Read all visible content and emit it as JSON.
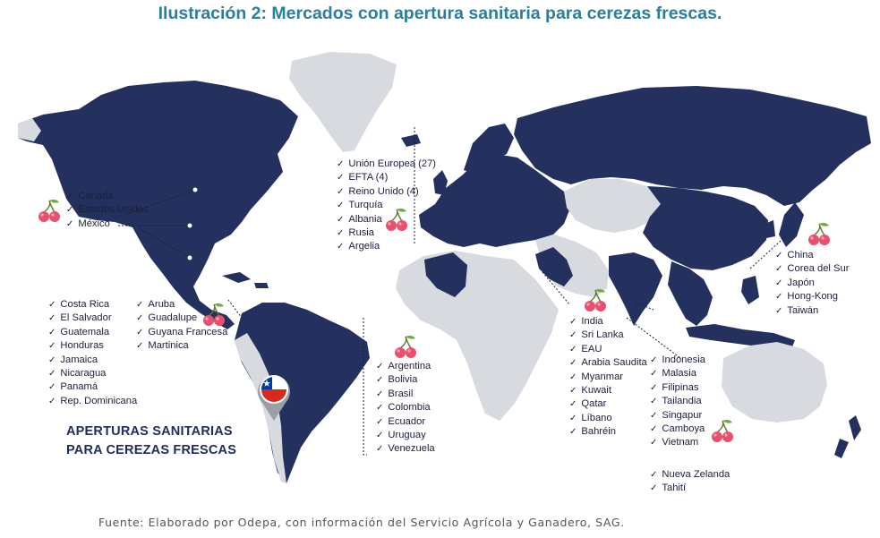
{
  "title": "Ilustración 2: Mercados con apertura sanitaria para cerezas frescas.",
  "headline_lines": [
    "APERTURAS SANITARIAS",
    "PARA CEREZAS FRESCAS"
  ],
  "source": "Fuente: Elaborado por Odepa, con información del Servicio Agrícola y Ganadero, SAG.",
  "colors": {
    "open_market": "#24305e",
    "other_land": "#d7dadf",
    "title": "#2a7f9c",
    "cherry": "#e8506e"
  },
  "icons": [
    "cherry-icon",
    "chile-flag-pin-icon",
    "checkmark-icon"
  ],
  "groups": {
    "north_america": [
      "Canadá",
      "Estados Unidos",
      "México"
    ],
    "central_america": [
      "Costa Rica",
      "El Salvador",
      "Guatemala",
      "Honduras",
      "Jamaica",
      "Nicaragua",
      "Panamá",
      "Rep. Dominicana"
    ],
    "caribbean": [
      "Aruba",
      "Guadalupe",
      "Guyana Francesa",
      "Martinica"
    ],
    "south_america": [
      "Argentina",
      "Bolivia",
      "Brasil",
      "Colombia",
      "Ecuador",
      "Uruguay",
      "Venezuela"
    ],
    "europe": [
      "Unión Europea (27)",
      "EFTA (4)",
      "Reino Unido (4)",
      "Turquía",
      "Albania",
      "Rusia",
      "Argelia"
    ],
    "middle_east_south_asia": [
      "India",
      "Sri Lanka",
      "EAU",
      "Arabia Saudita",
      "Myanmar",
      "Kuwait",
      "Qatar",
      "Líbano",
      "Bahréin"
    ],
    "southeast_asia": [
      "Indonesia",
      "Malasia",
      "Filipinas",
      "Tailandia",
      "Singapur",
      "Camboya",
      "Vietnam"
    ],
    "east_asia": [
      "China",
      "Corea del Sur",
      "Japón",
      "Hong-Kong",
      "Taiwán"
    ],
    "oceania": [
      "Nueva Zelanda",
      "Tahití"
    ]
  }
}
